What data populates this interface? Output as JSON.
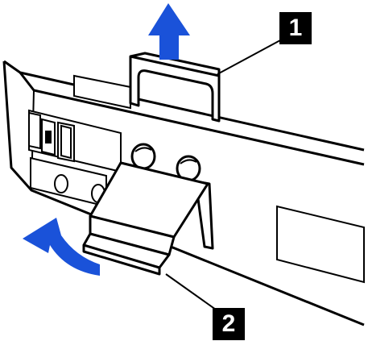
{
  "callouts": [
    {
      "label": "1"
    },
    {
      "label": "2"
    }
  ],
  "colors": {
    "arrow": "#1a52d9",
    "line": "#000000",
    "fill": "#ffffff",
    "badge": "#000000",
    "badge_text": "#ffffff"
  },
  "icons": {
    "up_arrow": "up-arrow-icon",
    "curved_arrow": "curved-arrow-icon",
    "handle": "handle-icon",
    "screw": "screw-icon",
    "latch": "latch-icon"
  }
}
